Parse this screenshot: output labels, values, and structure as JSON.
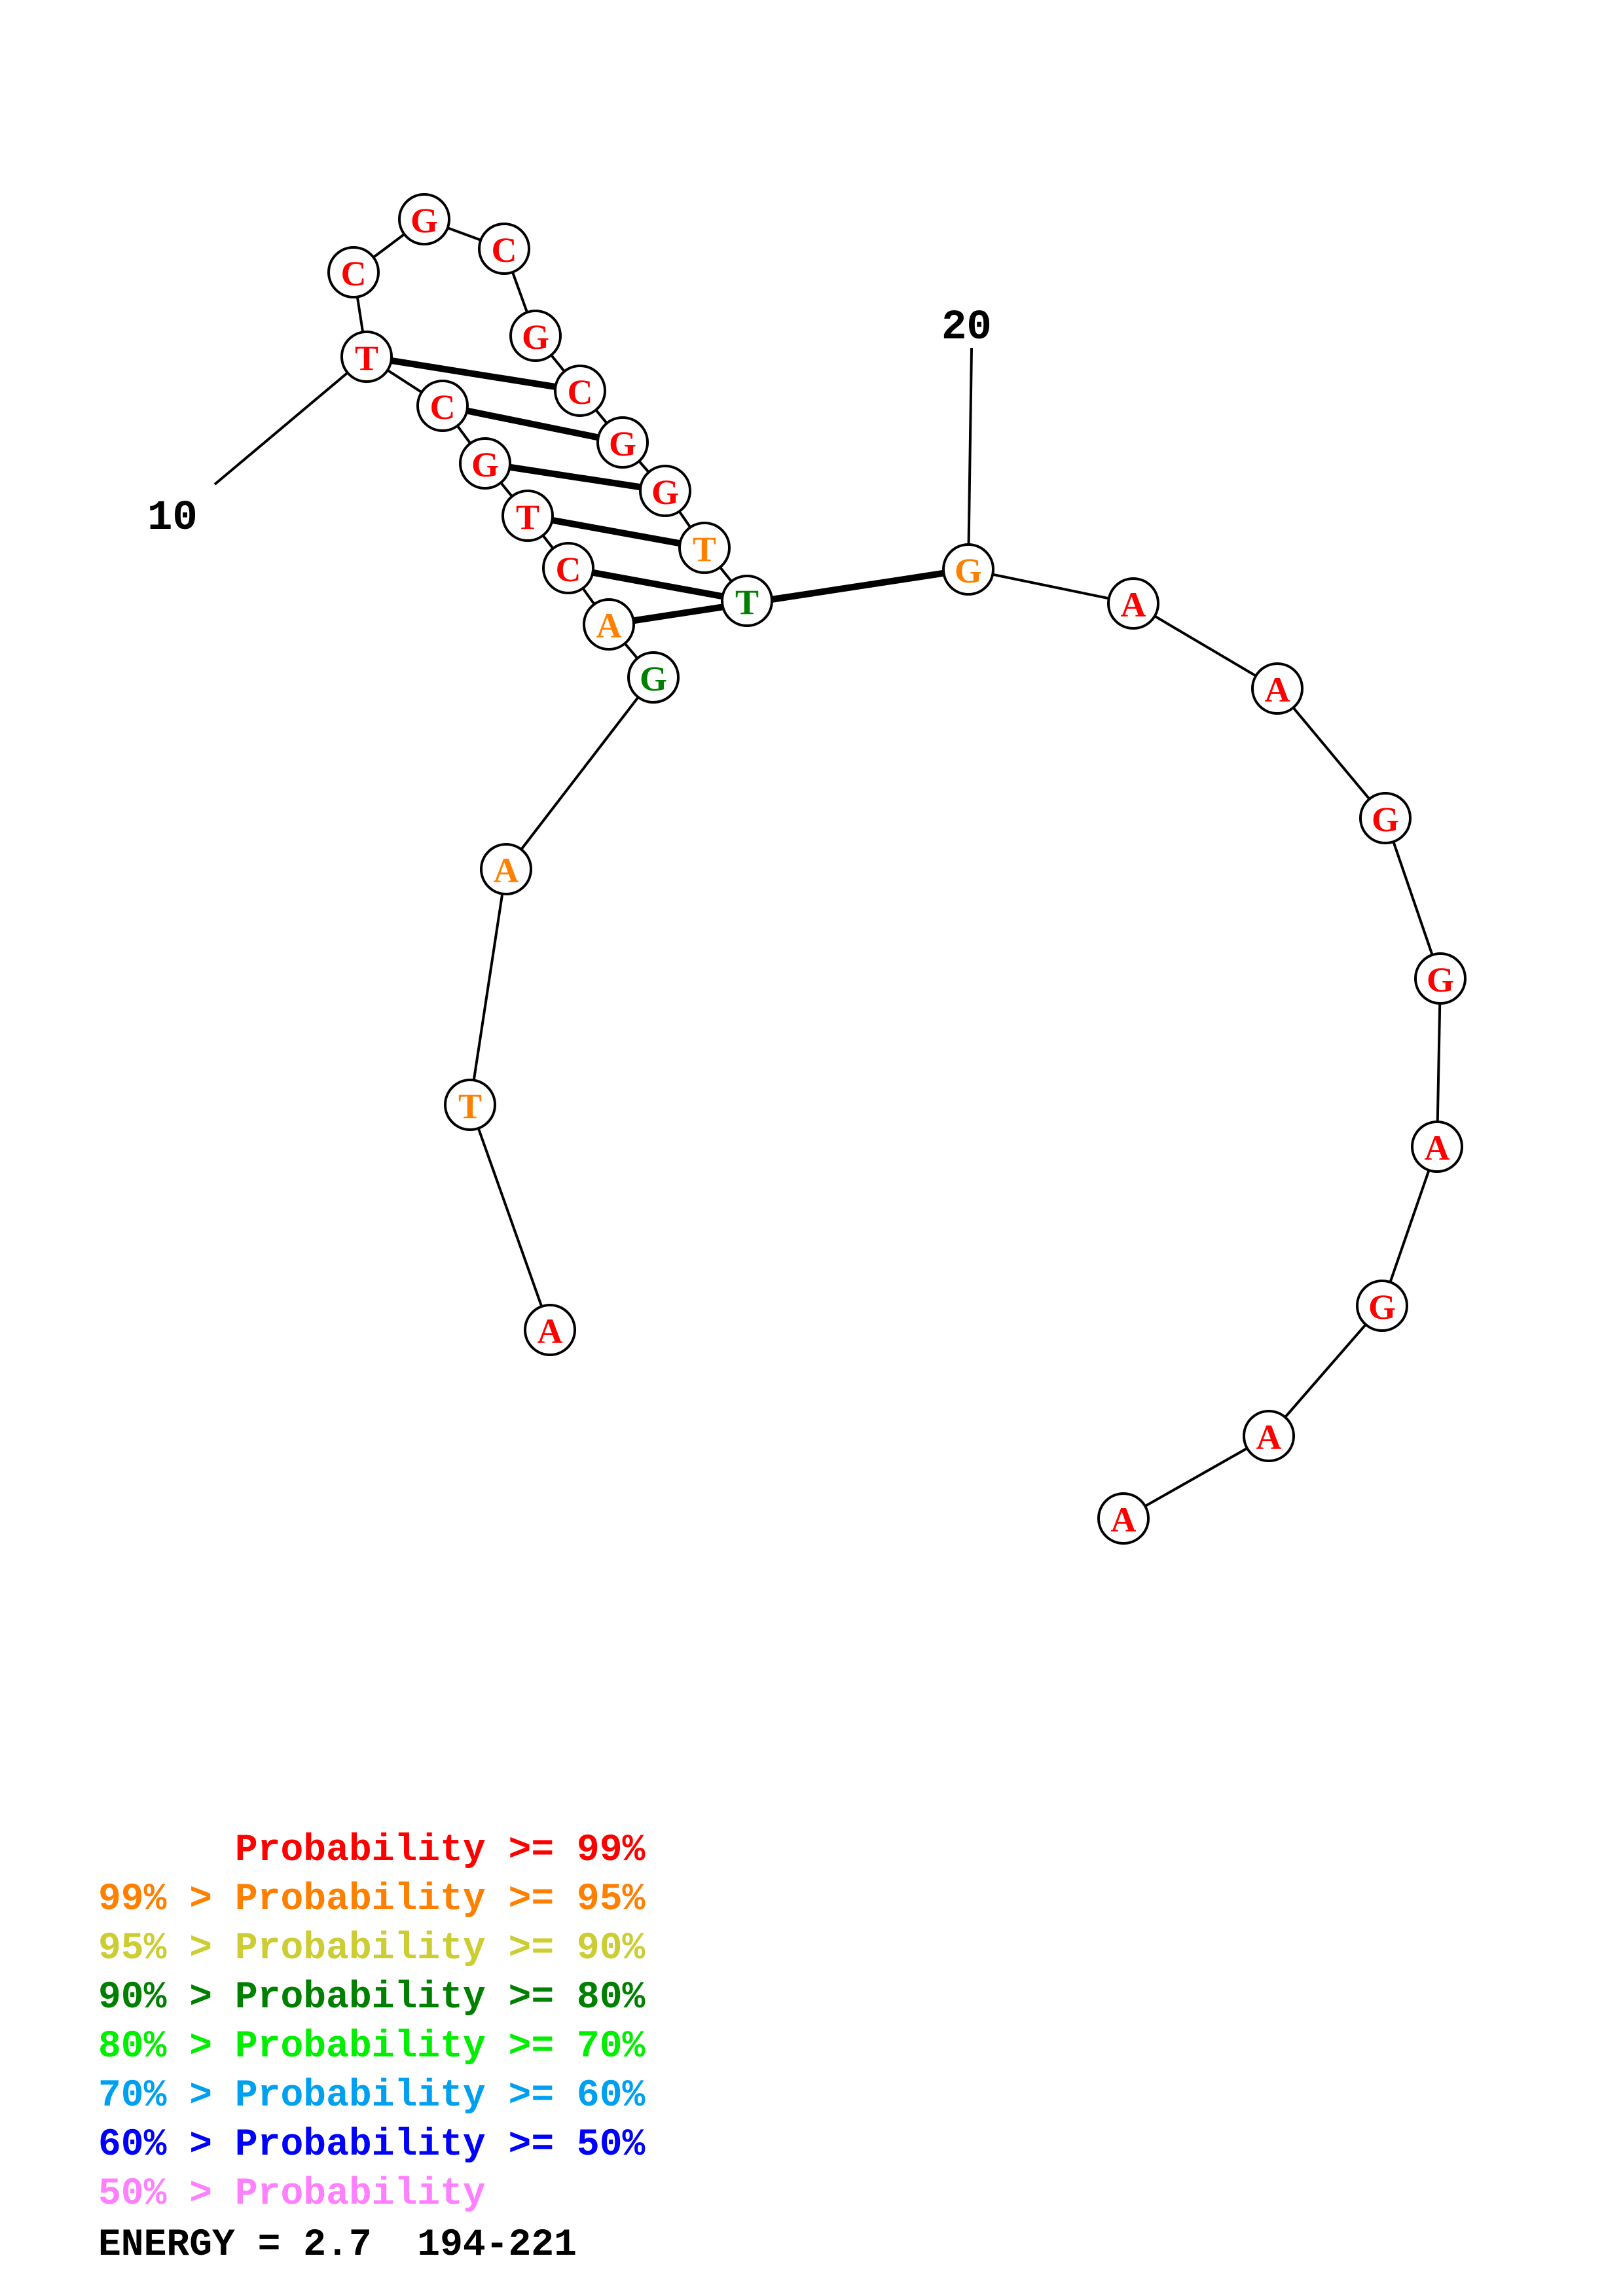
{
  "colors": {
    "p99": "#ff0000",
    "p95": "#ff8000",
    "p90": "#cccc33",
    "p80": "#008000",
    "p70": "#00ee00",
    "p60": "#00a0f0",
    "p50": "#0000ff",
    "plow": "#ff80ff"
  },
  "index_labels": [
    "10",
    "20"
  ],
  "nucleotides": [
    {
      "base": "A",
      "prob": "p99"
    },
    {
      "base": "T",
      "prob": "p95"
    },
    {
      "base": "A",
      "prob": "p95"
    },
    {
      "base": "G",
      "prob": "p80"
    },
    {
      "base": "A",
      "prob": "p95"
    },
    {
      "base": "C",
      "prob": "p99"
    },
    {
      "base": "T",
      "prob": "p99"
    },
    {
      "base": "G",
      "prob": "p99"
    },
    {
      "base": "C",
      "prob": "p99"
    },
    {
      "base": "T",
      "prob": "p99"
    },
    {
      "base": "C",
      "prob": "p99"
    },
    {
      "base": "G",
      "prob": "p99"
    },
    {
      "base": "C",
      "prob": "p99"
    },
    {
      "base": "G",
      "prob": "p99"
    },
    {
      "base": "C",
      "prob": "p99"
    },
    {
      "base": "G",
      "prob": "p99"
    },
    {
      "base": "G",
      "prob": "p99"
    },
    {
      "base": "T",
      "prob": "p95"
    },
    {
      "base": "T",
      "prob": "p80"
    },
    {
      "base": "G",
      "prob": "p95"
    },
    {
      "base": "A",
      "prob": "p99"
    },
    {
      "base": "A",
      "prob": "p99"
    },
    {
      "base": "G",
      "prob": "p99"
    },
    {
      "base": "G",
      "prob": "p99"
    },
    {
      "base": "A",
      "prob": "p99"
    },
    {
      "base": "G",
      "prob": "p99"
    },
    {
      "base": "A",
      "prob": "p99"
    },
    {
      "base": "A",
      "prob": "p99"
    }
  ],
  "pairs": [
    [
      4,
      19
    ],
    [
      5,
      18
    ],
    [
      6,
      17
    ],
    [
      7,
      16
    ],
    [
      8,
      15
    ],
    [
      9,
      14
    ]
  ],
  "legend": [
    {
      "prefix": "    ",
      "text": "Probability >= 99%",
      "color": "p99"
    },
    {
      "prefix": "99% > ",
      "text": "Probability >= 95%",
      "color": "p95"
    },
    {
      "prefix": "95% > ",
      "text": "Probability >= 90%",
      "color": "p90"
    },
    {
      "prefix": "90% > ",
      "text": "Probability >= 80%",
      "color": "p80"
    },
    {
      "prefix": "80% > ",
      "text": "Probability >= 70%",
      "color": "p70"
    },
    {
      "prefix": "70% > ",
      "text": "Probability >= 60%",
      "color": "p60"
    },
    {
      "prefix": "60% > ",
      "text": "Probability >= 50%",
      "color": "p50"
    },
    {
      "prefix": "50% > ",
      "text": "Probability",
      "color": "plow"
    }
  ],
  "energy": "ENERGY = 2.7  194-221"
}
